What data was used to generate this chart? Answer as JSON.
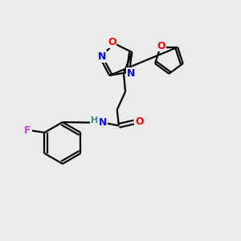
{
  "background_color": "#ebebeb",
  "bond_color": "#000000",
  "atom_colors": {
    "N": "#0000ff",
    "O": "#ff0000",
    "F": "#cc44cc",
    "H": "#448888",
    "C": "#000000"
  },
  "font_size": 9,
  "figsize": [
    3.0,
    3.0
  ],
  "dpi": 100
}
